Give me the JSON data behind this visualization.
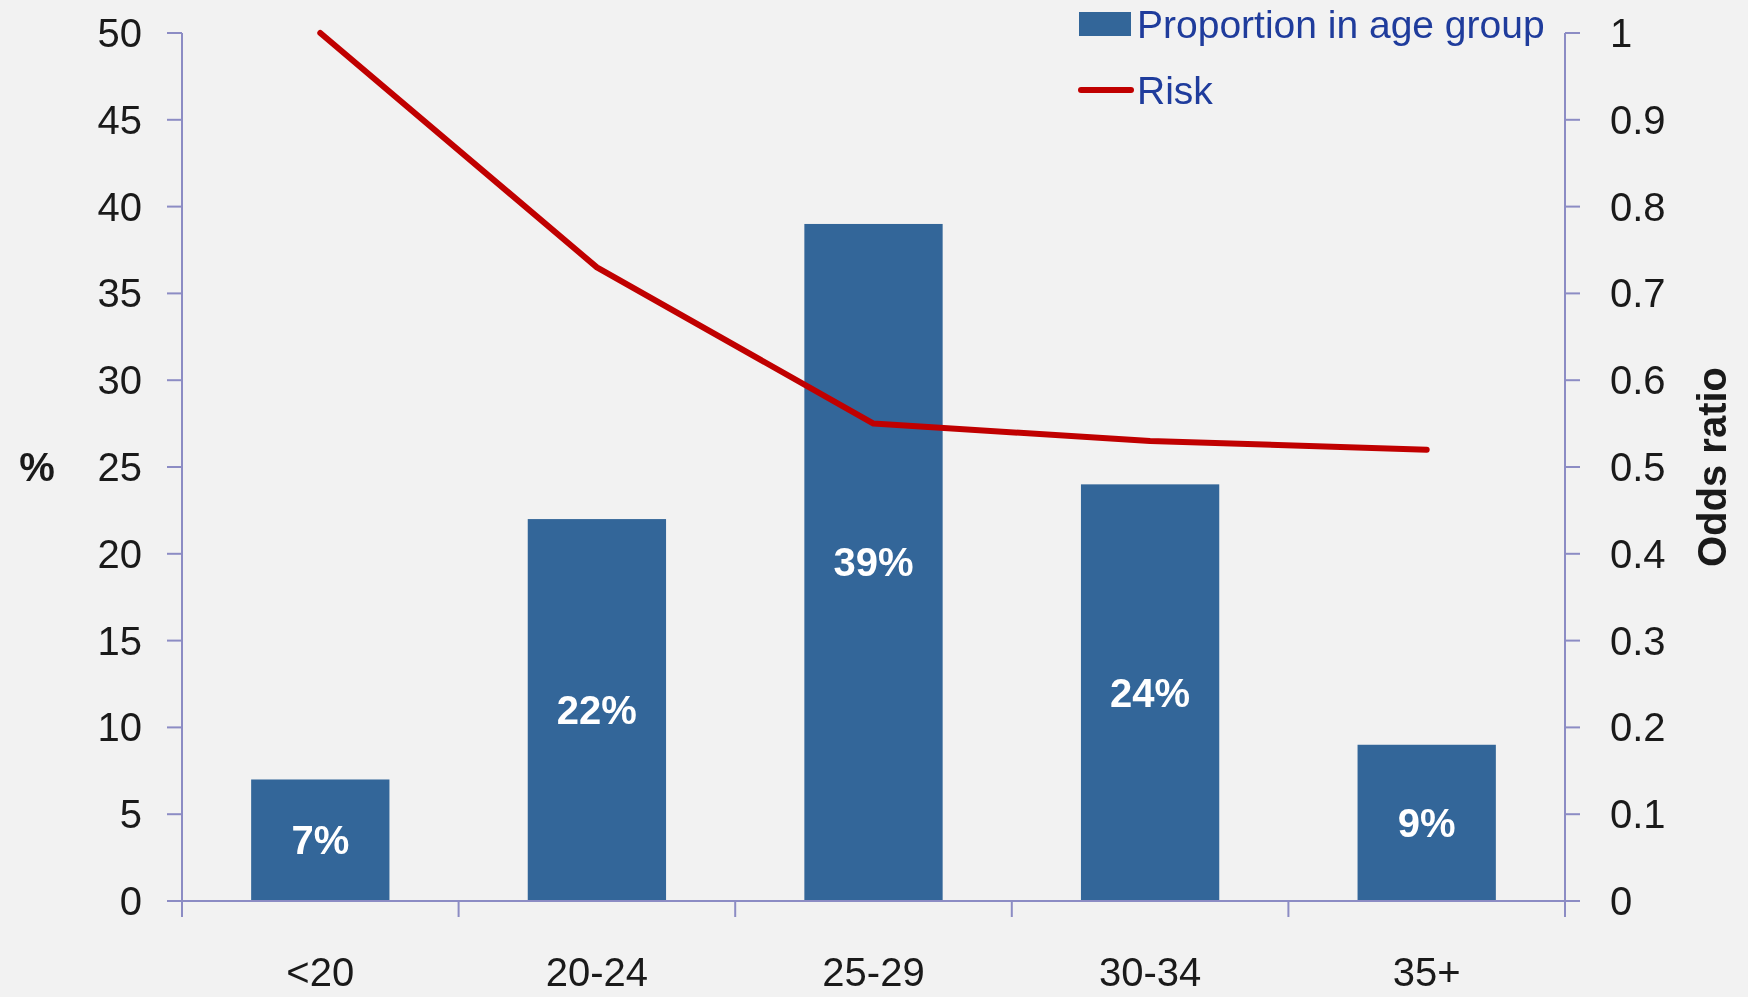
{
  "chart_data": {
    "type": "bar",
    "categories": [
      "<20",
      "20-24",
      "25-29",
      "30-34",
      "35+"
    ],
    "series": [
      {
        "name": "Proportion in age group",
        "color": "#336699",
        "values": [
          7,
          22,
          39,
          24,
          9
        ],
        "value_labels": [
          "7%",
          "22%",
          "39%",
          "24%",
          "9%"
        ]
      },
      {
        "name": "Risk",
        "type": "line",
        "axis": "y2",
        "color": "#c00000",
        "values": [
          1,
          0.73,
          0.55,
          0.53,
          0.52
        ]
      }
    ],
    "ylabel": "%",
    "y2label": "Odds ratio",
    "ylim": [
      0,
      50
    ],
    "yticks": [
      0,
      5,
      10,
      15,
      20,
      25,
      30,
      35,
      40,
      45,
      50
    ],
    "y2lim": [
      0,
      1
    ],
    "y2ticks": [
      0,
      0.1,
      0.2,
      0.3,
      0.4,
      0.5,
      0.6,
      0.7,
      0.8,
      0.9,
      1
    ],
    "legend": "top right"
  }
}
